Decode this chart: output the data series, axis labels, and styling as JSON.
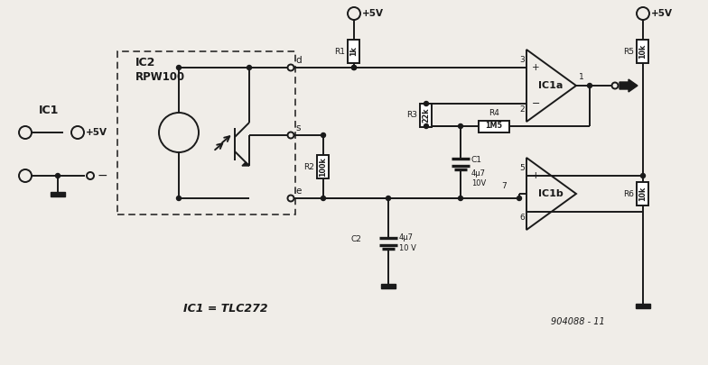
{
  "bg_color": "#f0ede8",
  "line_color": "#1a1a1a",
  "title": "904088 - 11",
  "ic2_label1": "IC2",
  "ic2_label2": "RPW100",
  "ic1_eq": "IC1 = TLC272",
  "r1": "1k",
  "r2": "100k",
  "r3": "22k",
  "r4": "1M5",
  "r5": "10k",
  "r6": "10k",
  "c1": "4µ7\n10V",
  "c2": "4µ7\n10 V"
}
